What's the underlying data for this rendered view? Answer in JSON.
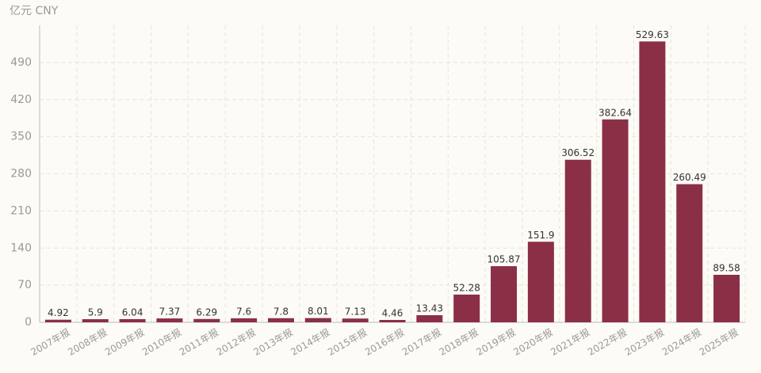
{
  "chart_data": {
    "type": "bar",
    "y_axis_label": "亿元  CNY",
    "categories": [
      "2007年报",
      "2008年报",
      "2009年报",
      "2010年报",
      "2011年报",
      "2012年报",
      "2013年报",
      "2014年报",
      "2015年报",
      "2016年报",
      "2017年报",
      "2018年报",
      "2019年报",
      "2020年报",
      "2021年报",
      "2022年报",
      "2023年报",
      "2024年报",
      "2025年报"
    ],
    "values": [
      4.92,
      5.9,
      6.04,
      7.37,
      6.29,
      7.6,
      7.8,
      8.01,
      7.13,
      4.46,
      13.43,
      52.28,
      105.87,
      151.9,
      306.52,
      382.64,
      529.63,
      260.49,
      89.58
    ],
    "color": "#8b2f47",
    "ylim": [
      0,
      560
    ],
    "yticks": [
      0,
      70,
      140,
      210,
      280,
      350,
      420,
      490
    ],
    "grid": true
  }
}
